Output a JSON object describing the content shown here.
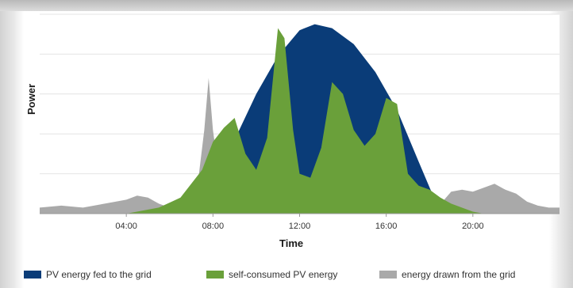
{
  "chart_data": {
    "type": "area",
    "xlabel": "Time",
    "ylabel": "Power",
    "x_range_hours": [
      0,
      24
    ],
    "y_range_percent_of_peak": [
      0,
      100
    ],
    "grid": true,
    "legend_placement": "bottom",
    "x_ticks": [
      {
        "hour": 4,
        "label": "04:00"
      },
      {
        "hour": 8,
        "label": "08:00"
      },
      {
        "hour": 12,
        "label": "12:00"
      },
      {
        "hour": 16,
        "label": "16:00"
      },
      {
        "hour": 20,
        "label": "20:00"
      }
    ],
    "series": [
      {
        "name": "PV energy fed to the grid",
        "color": "#0a3c78",
        "x": [
          5.0,
          6.0,
          7.0,
          8.0,
          9.0,
          10.0,
          11.0,
          12.0,
          12.7,
          13.5,
          14.5,
          15.5,
          16.5,
          17.5,
          18.2,
          18.6
        ],
        "y": [
          0,
          2,
          6,
          17,
          37,
          60,
          79,
          92,
          95,
          93,
          85,
          71,
          52,
          26,
          8,
          2
        ]
      },
      {
        "name": "self-consumed PV energy",
        "color": "#6aa03a",
        "x": [
          4.0,
          5.5,
          6.5,
          7.5,
          8.0,
          8.5,
          9.0,
          9.5,
          10.0,
          10.5,
          11.0,
          11.3,
          11.7,
          12.0,
          12.5,
          13.0,
          13.5,
          14.0,
          14.5,
          15.0,
          15.5,
          16.0,
          16.5,
          17.0,
          17.5,
          18.0,
          18.5,
          19.0,
          20.0,
          20.5
        ],
        "y": [
          0,
          3,
          8,
          22,
          36,
          43,
          48,
          30,
          22,
          38,
          93,
          88,
          42,
          20,
          18,
          33,
          66,
          60,
          42,
          34,
          40,
          58,
          55,
          20,
          14,
          12,
          8,
          5,
          1,
          0
        ]
      },
      {
        "name": "energy drawn from the grid",
        "color": "#a9a9a9",
        "x": [
          0.0,
          1.0,
          2.0,
          3.0,
          4.0,
          4.5,
          5.0,
          5.5,
          6.0,
          6.5,
          7.0,
          7.3,
          7.6,
          7.8,
          8.0,
          8.3,
          8.6,
          9.0,
          18.2,
          18.6,
          19.0,
          19.5,
          20.0,
          20.5,
          21.0,
          21.5,
          22.0,
          22.5,
          23.0,
          23.5,
          24.0
        ],
        "y": [
          3,
          4,
          3,
          5,
          7,
          9,
          8,
          5,
          3,
          4,
          7,
          15,
          42,
          68,
          42,
          18,
          10,
          6,
          2,
          6,
          11,
          12,
          11,
          13,
          15,
          12,
          10,
          6,
          4,
          3,
          3
        ]
      }
    ]
  }
}
